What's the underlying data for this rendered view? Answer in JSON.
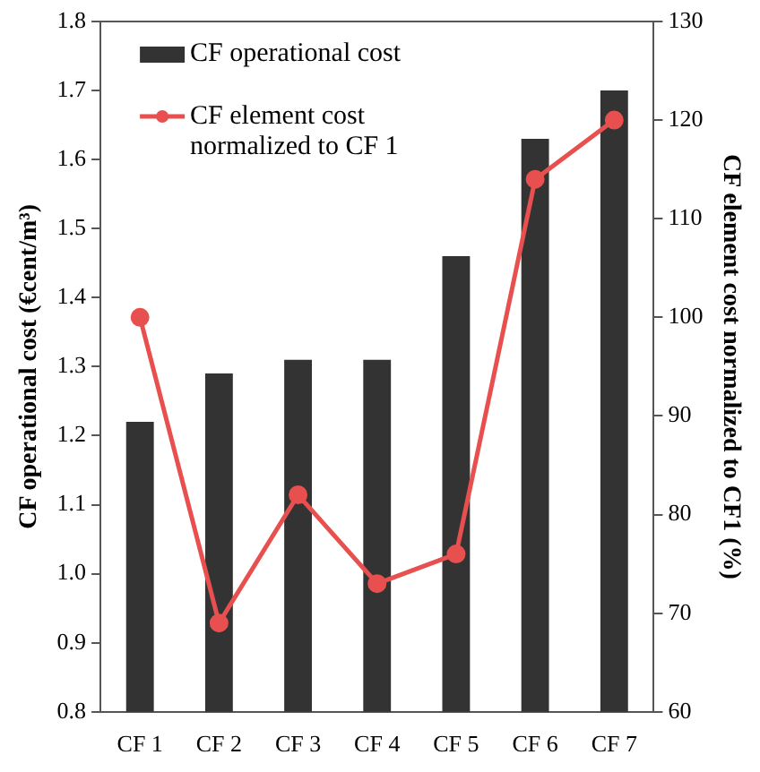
{
  "chart_data": {
    "type": "bar",
    "categories": [
      "CF 1",
      "CF 2",
      "CF 3",
      "CF 4",
      "CF 5",
      "CF 6",
      "CF 7"
    ],
    "ylabel": "CF operational cost (€cent/m³)",
    "y2label": "CF element cost normalized to CF1 (%)",
    "series": [
      {
        "name": "CF operational cost",
        "color": "#333333",
        "values": [
          1.22,
          1.29,
          1.31,
          1.31,
          1.46,
          1.63,
          1.7
        ]
      },
      {
        "name": "CF element cost normalized to CF 1",
        "type": "line",
        "axis": "y2",
        "color": "#e8504f",
        "values": [
          100,
          69,
          82,
          73,
          76,
          114,
          120
        ]
      }
    ],
    "ylim": [
      0.8,
      1.8
    ],
    "yticks": [
      {
        "value": 0.8,
        "label": "0.8"
      },
      {
        "value": 0.9,
        "label": "0.9"
      },
      {
        "value": 1.0,
        "label": "1.0"
      },
      {
        "value": 1.1,
        "label": "1.1"
      },
      {
        "value": 1.2,
        "label": "1.2"
      },
      {
        "value": 1.3,
        "label": "1.3"
      },
      {
        "value": 1.4,
        "label": "1.4"
      },
      {
        "value": 1.5,
        "label": "1.5"
      },
      {
        "value": 1.6,
        "label": "1.6"
      },
      {
        "value": 1.7,
        "label": "1.7"
      },
      {
        "value": 1.8,
        "label": "1.8"
      }
    ],
    "y2lim": [
      60,
      130
    ],
    "y2ticks": [
      60,
      70,
      80,
      90,
      100,
      110,
      120,
      130
    ],
    "grid": false,
    "legend": "top left",
    "marker": "circle",
    "line_style": "solid"
  }
}
